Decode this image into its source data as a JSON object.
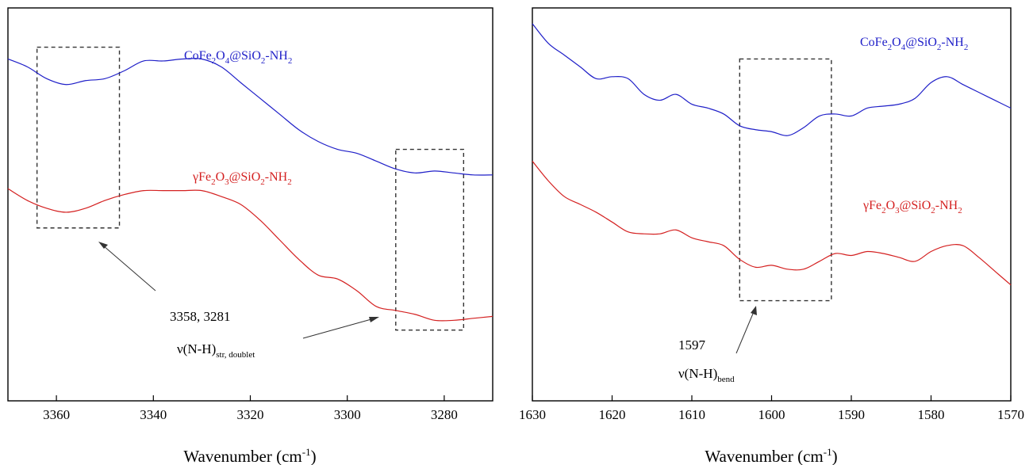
{
  "colors": {
    "cofe": "#1f1fc8",
    "gfe": "#d42020",
    "axis": "#000000",
    "box": "#333333"
  },
  "chart_data": [
    {
      "type": "line",
      "xlabel": "Wavenumber (cm-1)",
      "xlabel_parts": {
        "main": "Wavenumber (cm",
        "sup": "-1",
        "close": ")"
      },
      "xlim": [
        3370,
        3270
      ],
      "ylim": [
        0,
        1
      ],
      "y_ticks_visible": false,
      "grid": false,
      "x_ticks": [
        3360,
        3340,
        3320,
        3300,
        3280
      ],
      "x_tick_labels": [
        "3360",
        "3340",
        "3320",
        "3300",
        "3280"
      ],
      "series": [
        {
          "label_parts": [
            [
              "CoFe",
              ""
            ],
            [
              "2",
              "sub"
            ],
            [
              "O",
              ""
            ],
            [
              "4",
              "sub"
            ],
            [
              "@SiO",
              ""
            ],
            [
              "2",
              "sub"
            ],
            [
              "-NH",
              ""
            ],
            [
              "2",
              "sub"
            ]
          ],
          "color_key": "cofe",
          "x": [
            3370,
            3366,
            3362,
            3358,
            3354,
            3350,
            3346,
            3342,
            3338,
            3334,
            3330,
            3326,
            3322,
            3318,
            3314,
            3310,
            3306,
            3302,
            3298,
            3294,
            3290,
            3286,
            3282,
            3278,
            3274,
            3270
          ],
          "y": [
            0.87,
            0.85,
            0.82,
            0.805,
            0.815,
            0.82,
            0.84,
            0.865,
            0.865,
            0.87,
            0.87,
            0.85,
            0.81,
            0.77,
            0.73,
            0.69,
            0.66,
            0.64,
            0.63,
            0.61,
            0.59,
            0.58,
            0.585,
            0.58,
            0.575,
            0.575
          ]
        },
        {
          "label_parts": [
            [
              "γFe",
              ""
            ],
            [
              "2",
              "sub"
            ],
            [
              "O",
              ""
            ],
            [
              "3",
              "sub"
            ],
            [
              "@SiO",
              ""
            ],
            [
              "2",
              "sub"
            ],
            [
              "-NH",
              ""
            ],
            [
              "2",
              "sub"
            ]
          ],
          "color_key": "gfe",
          "x": [
            3370,
            3366,
            3362,
            3358,
            3354,
            3350,
            3346,
            3342,
            3338,
            3334,
            3330,
            3326,
            3322,
            3318,
            3314,
            3310,
            3306,
            3302,
            3298,
            3294,
            3290,
            3286,
            3282,
            3278,
            3274,
            3270
          ],
          "y": [
            0.54,
            0.51,
            0.49,
            0.48,
            0.49,
            0.51,
            0.525,
            0.535,
            0.535,
            0.535,
            0.535,
            0.52,
            0.5,
            0.46,
            0.41,
            0.36,
            0.32,
            0.31,
            0.28,
            0.24,
            0.23,
            0.22,
            0.205,
            0.205,
            0.21,
            0.215
          ]
        }
      ],
      "boxes": [
        {
          "x": [
            3364,
            3347
          ],
          "y": [
            0.44,
            0.9
          ]
        },
        {
          "x": [
            3290,
            3276
          ],
          "y": [
            0.18,
            0.64
          ]
        }
      ],
      "annotations": {
        "positions": "3358, 3281",
        "mode_prefix": "ν(N-H)",
        "mode_sub": "str, doublet"
      }
    },
    {
      "type": "line",
      "xlabel": "Wavenumber (cm-1)",
      "xlabel_parts": {
        "main": "Wavenumber (cm",
        "sup": "-1",
        "close": ")"
      },
      "xlim": [
        1630,
        1570
      ],
      "ylim": [
        0,
        1
      ],
      "y_ticks_visible": false,
      "grid": false,
      "x_ticks": [
        1630,
        1620,
        1610,
        1600,
        1590,
        1580,
        1570
      ],
      "x_tick_labels": [
        "1630",
        "1620",
        "1610",
        "1600",
        "1590",
        "1580",
        "1570"
      ],
      "series": [
        {
          "label_parts": [
            [
              "CoFe",
              ""
            ],
            [
              "2",
              "sub"
            ],
            [
              "O",
              ""
            ],
            [
              "4",
              "sub"
            ],
            [
              "@SiO",
              ""
            ],
            [
              "2",
              "sub"
            ],
            [
              "-NH",
              ""
            ],
            [
              "2",
              "sub"
            ]
          ],
          "color_key": "cofe",
          "x": [
            1630,
            1628,
            1626,
            1624,
            1622,
            1620,
            1618,
            1616,
            1614,
            1612,
            1610,
            1608,
            1606,
            1604,
            1602,
            1600,
            1598,
            1596,
            1594,
            1592,
            1590,
            1588,
            1586,
            1584,
            1582,
            1580,
            1578,
            1576,
            1574,
            1572,
            1570
          ],
          "y": [
            0.96,
            0.91,
            0.88,
            0.85,
            0.82,
            0.825,
            0.82,
            0.78,
            0.765,
            0.78,
            0.755,
            0.745,
            0.73,
            0.7,
            0.69,
            0.685,
            0.675,
            0.695,
            0.725,
            0.73,
            0.725,
            0.745,
            0.75,
            0.755,
            0.77,
            0.81,
            0.825,
            0.805,
            0.785,
            0.765,
            0.745
          ]
        },
        {
          "label_parts": [
            [
              "γFe",
              ""
            ],
            [
              "2",
              "sub"
            ],
            [
              "O",
              ""
            ],
            [
              "3",
              "sub"
            ],
            [
              "@SiO",
              ""
            ],
            [
              "2",
              "sub"
            ],
            [
              "-NH",
              ""
            ],
            [
              "2",
              "sub"
            ]
          ],
          "color_key": "gfe",
          "x": [
            1630,
            1628,
            1626,
            1624,
            1622,
            1620,
            1618,
            1616,
            1614,
            1612,
            1610,
            1608,
            1606,
            1604,
            1602,
            1600,
            1598,
            1596,
            1594,
            1592,
            1590,
            1588,
            1586,
            1584,
            1582,
            1580,
            1578,
            1576,
            1574,
            1572,
            1570
          ],
          "y": [
            0.61,
            0.56,
            0.52,
            0.5,
            0.48,
            0.455,
            0.43,
            0.425,
            0.425,
            0.435,
            0.415,
            0.405,
            0.395,
            0.36,
            0.34,
            0.345,
            0.335,
            0.335,
            0.355,
            0.375,
            0.37,
            0.38,
            0.375,
            0.365,
            0.355,
            0.38,
            0.395,
            0.395,
            0.365,
            0.33,
            0.295
          ]
        }
      ],
      "boxes": [
        {
          "x": [
            1604,
            1592.5
          ],
          "y": [
            0.255,
            0.87
          ]
        }
      ],
      "annotations": {
        "positions": "1597",
        "mode_prefix": "ν(N-H)",
        "mode_sub": "bend"
      }
    }
  ]
}
